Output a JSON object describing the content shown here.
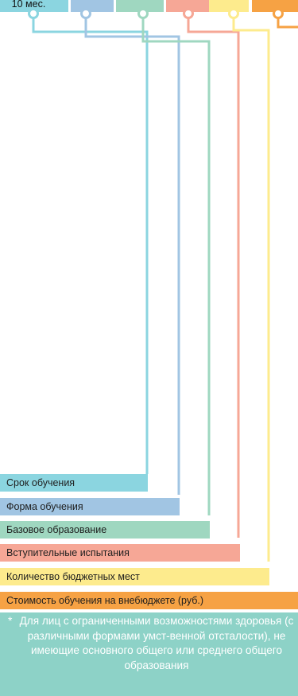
{
  "colors": {
    "cyan": "#8bd5e0",
    "blue": "#a1c5e3",
    "green": "#9fd7c0",
    "salmon": "#f6a796",
    "yellow": "#fdeb8d",
    "orange": "#f6a244",
    "footnote_bg": "#8dd2c7"
  },
  "top_row": {
    "first_value": "10 мес."
  },
  "legend": [
    {
      "label": "Срок обучения",
      "color": "#8bd5e0"
    },
    {
      "label": "Форма обучения",
      "color": "#a1c5e3"
    },
    {
      "label": "Базовое образование",
      "color": "#9fd7c0"
    },
    {
      "label": "Вступительные испытания",
      "color": "#f6a796"
    },
    {
      "label": "Количество бюджетных мест",
      "color": "#fdeb8d"
    },
    {
      "label": "Стоимость обучения на внебюджете (руб.)",
      "color": "#f6a244"
    }
  ],
  "footnote": {
    "marker": "*",
    "text": "Для лиц с ограниченными возможностями здоровья (с различными формами умст-венной отсталости), не имеющие основного общего или среднего общего образования"
  }
}
